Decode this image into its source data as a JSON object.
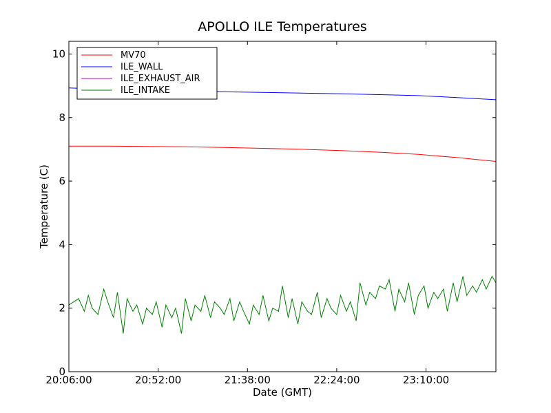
{
  "chart_data": {
    "type": "line",
    "title": "APOLLO ILE Temperatures",
    "xlabel": "Date (GMT)",
    "ylabel": "Temperature (C)",
    "x_unit": "minutes",
    "x_range": [
      "20:06:00",
      "23:46:00"
    ],
    "xlim": [
      0,
      220
    ],
    "ylim": [
      0,
      10.4
    ],
    "x_ticks": [
      {
        "value": 0,
        "label": "20:06:00"
      },
      {
        "value": 46,
        "label": "20:52:00"
      },
      {
        "value": 92,
        "label": "21:38:00"
      },
      {
        "value": 138,
        "label": "22:24:00"
      },
      {
        "value": 184,
        "label": "23:10:00"
      }
    ],
    "y_ticks": [
      {
        "value": 0,
        "label": "0"
      },
      {
        "value": 2,
        "label": "2"
      },
      {
        "value": 4,
        "label": "4"
      },
      {
        "value": 6,
        "label": "6"
      },
      {
        "value": 8,
        "label": "8"
      },
      {
        "value": 10,
        "label": "10"
      }
    ],
    "grid": false,
    "legend_position": "top-left",
    "series": [
      {
        "name": "MV70",
        "color": "#ff0000",
        "x": [
          0,
          20,
          40,
          60,
          80,
          100,
          120,
          140,
          160,
          180,
          200,
          220
        ],
        "y": [
          7.1,
          7.1,
          7.09,
          7.08,
          7.06,
          7.03,
          7.0,
          6.96,
          6.91,
          6.84,
          6.74,
          6.62
        ]
      },
      {
        "name": "ILE_WALL",
        "color": "#0000ff",
        "x": [
          0,
          20,
          40,
          60,
          80,
          100,
          120,
          140,
          160,
          180,
          200,
          220
        ],
        "y": [
          8.93,
          8.89,
          8.86,
          8.84,
          8.81,
          8.79,
          8.77,
          8.75,
          8.72,
          8.69,
          8.63,
          8.56
        ]
      },
      {
        "name": "ILE_EXHAUST_AIR",
        "color": "#bf00bf",
        "x": [],
        "y": []
      },
      {
        "name": "ILE_INTAKE",
        "color": "#008000",
        "x": [
          0,
          5,
          8,
          10,
          12,
          15,
          18,
          20,
          23,
          25,
          28,
          30,
          33,
          35,
          38,
          40,
          43,
          45,
          48,
          50,
          53,
          55,
          58,
          60,
          63,
          65,
          68,
          70,
          73,
          75,
          78,
          80,
          83,
          85,
          88,
          90,
          93,
          95,
          98,
          100,
          103,
          105,
          108,
          110,
          113,
          115,
          118,
          120,
          123,
          125,
          128,
          130,
          133,
          135,
          138,
          140,
          143,
          145,
          148,
          150,
          153,
          155,
          158,
          160,
          163,
          165,
          168,
          170,
          173,
          175,
          178,
          180,
          183,
          185,
          188,
          190,
          193,
          195,
          198,
          200,
          203,
          205,
          208,
          210,
          213,
          215,
          218,
          220
        ],
        "y": [
          2.1,
          2.3,
          1.9,
          2.4,
          2.0,
          1.8,
          2.6,
          2.2,
          1.7,
          2.5,
          1.2,
          2.3,
          1.9,
          2.1,
          1.5,
          2.0,
          1.8,
          2.2,
          1.4,
          2.1,
          1.7,
          2.0,
          1.2,
          2.3,
          1.6,
          2.1,
          1.9,
          2.4,
          1.7,
          2.2,
          2.0,
          1.8,
          2.3,
          1.6,
          2.2,
          1.9,
          1.5,
          2.1,
          1.8,
          2.4,
          1.6,
          2.0,
          1.9,
          2.7,
          1.7,
          2.3,
          1.5,
          2.2,
          1.9,
          1.8,
          2.5,
          1.7,
          2.3,
          2.0,
          1.8,
          2.4,
          1.9,
          2.2,
          1.6,
          2.8,
          2.1,
          2.5,
          2.3,
          2.7,
          2.6,
          2.9,
          1.9,
          2.6,
          2.2,
          2.8,
          1.8,
          2.4,
          2.7,
          2.0,
          2.5,
          2.3,
          2.6,
          1.9,
          2.8,
          2.2,
          3.0,
          2.4,
          2.7,
          2.5,
          2.9,
          2.6,
          3.0,
          2.8
        ]
      }
    ]
  }
}
